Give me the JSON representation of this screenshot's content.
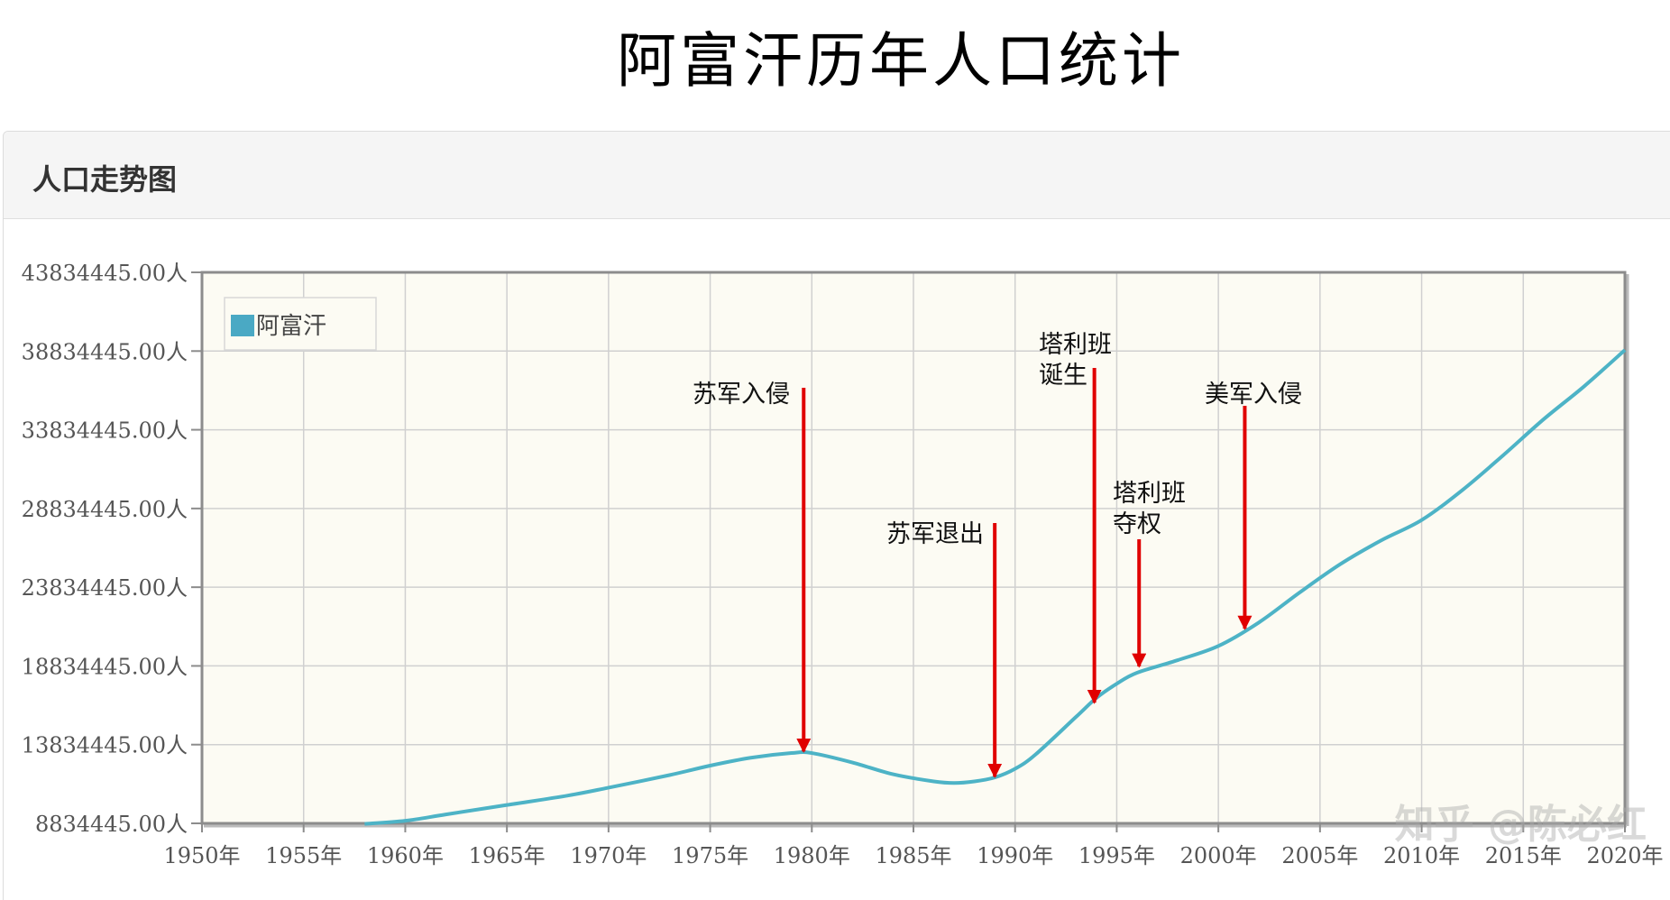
{
  "page": {
    "title": "阿富汗历年人口统计"
  },
  "panel": {
    "title": "人口走势图"
  },
  "watermark": "知乎 @陈必红",
  "colors": {
    "line": "#4db3c6",
    "plot_bg": "#fcfbf3",
    "grid": "#d0d0d0",
    "axis": "#8c8c8c",
    "arrow": "#e00000",
    "legend_swatch": "#4aa9c4"
  },
  "chart_data": {
    "type": "line",
    "title": "",
    "xlabel": "",
    "ylabel": "",
    "x_ticks": [
      "1950年",
      "1955年",
      "1960年",
      "1965年",
      "1970年",
      "1975年",
      "1980年",
      "1985年",
      "1990年",
      "1995年",
      "2000年",
      "2005年",
      "2010年",
      "2015年",
      "2020年"
    ],
    "y_ticks": [
      "8834445.00人",
      "13834445.00人",
      "18834445.00人",
      "23834445.00人",
      "28834445.00人",
      "33834445.00人",
      "38834445.00人",
      "43834445.00人"
    ],
    "xlim": [
      1950,
      2020
    ],
    "ylim": [
      8834445,
      43834445
    ],
    "grid": true,
    "legend_position": "top-left",
    "series": [
      {
        "name": "阿富汗",
        "x": [
          1958,
          1960,
          1962,
          1965,
          1968,
          1970,
          1973,
          1975,
          1977,
          1979,
          1980,
          1982,
          1984,
          1986,
          1987,
          1988,
          1989,
          1990,
          1991,
          1993,
          1994,
          1995,
          1996,
          1998,
          2000,
          2002,
          2004,
          2006,
          2008,
          2010,
          2012,
          2014,
          2016,
          2018,
          2020
        ],
        "values": [
          8800000,
          9000000,
          9400000,
          10000000,
          10600000,
          11100000,
          11900000,
          12500000,
          13000000,
          13300000,
          13300000,
          12700000,
          11950000,
          11500000,
          11400000,
          11500000,
          11750000,
          12300000,
          13200000,
          15600000,
          16800000,
          17700000,
          18400000,
          19200000,
          20100000,
          21600000,
          23500000,
          25300000,
          26800000,
          28100000,
          30000000,
          32200000,
          34500000,
          36600000,
          38900000
        ]
      }
    ],
    "annotations": [
      {
        "label_lines": [
          "苏军入侵"
        ],
        "year": 1979.6,
        "tip_value": 13400000
      },
      {
        "label_lines": [
          "苏军退出"
        ],
        "year": 1989,
        "tip_value": 11800000
      },
      {
        "label_lines": [
          "塔利班",
          "诞生"
        ],
        "year": 1993.9,
        "tip_value": 16500000
      },
      {
        "label_lines": [
          "塔利班",
          "夺权"
        ],
        "year": 1996.1,
        "tip_value": 18800000
      },
      {
        "label_lines": [
          "美军入侵"
        ],
        "year": 2001.3,
        "tip_value": 21200000
      }
    ]
  }
}
